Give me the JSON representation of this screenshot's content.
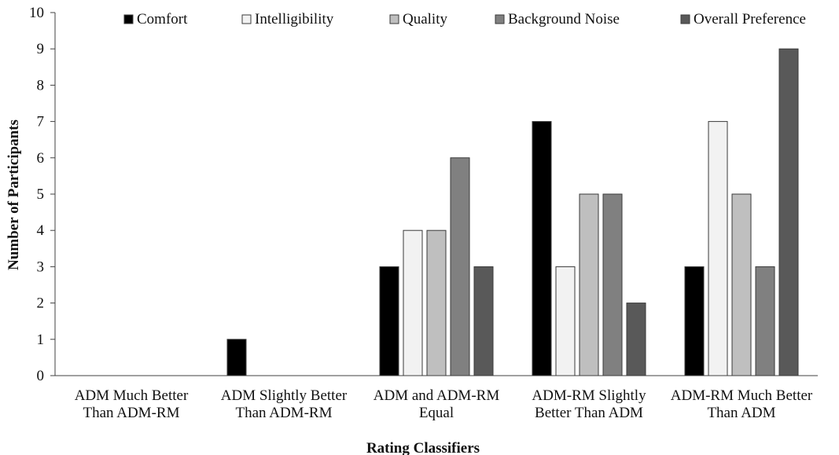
{
  "chart_data": {
    "type": "bar",
    "title": "",
    "xlabel": "Rating Classifiers",
    "ylabel": "Number of Participants",
    "ylim": [
      0,
      10
    ],
    "yticks": [
      0,
      1,
      2,
      3,
      4,
      5,
      6,
      7,
      8,
      9,
      10
    ],
    "grid": false,
    "legend_position": "top",
    "categories": [
      [
        "ADM Much Better",
        "Than ADM-RM"
      ],
      [
        "ADM Slightly Better",
        "Than ADM-RM"
      ],
      [
        "ADM and ADM-RM",
        "Equal"
      ],
      [
        "ADM-RM Slightly",
        "Better Than ADM"
      ],
      [
        "ADM-RM Much Better",
        "Than ADM"
      ]
    ],
    "series": [
      {
        "name": "Comfort",
        "color": "#000000",
        "values": [
          0,
          1,
          3,
          7,
          3
        ]
      },
      {
        "name": "Intelligibility",
        "color": "#f2f2f2",
        "values": [
          0,
          0,
          4,
          3,
          7
        ]
      },
      {
        "name": "Quality",
        "color": "#bfbfbf",
        "values": [
          0,
          0,
          4,
          5,
          5
        ]
      },
      {
        "name": "Background Noise",
        "color": "#808080",
        "values": [
          0,
          0,
          6,
          5,
          3
        ]
      },
      {
        "name": "Overall Preference",
        "color": "#595959",
        "values": [
          0,
          0,
          3,
          2,
          9
        ]
      }
    ]
  }
}
